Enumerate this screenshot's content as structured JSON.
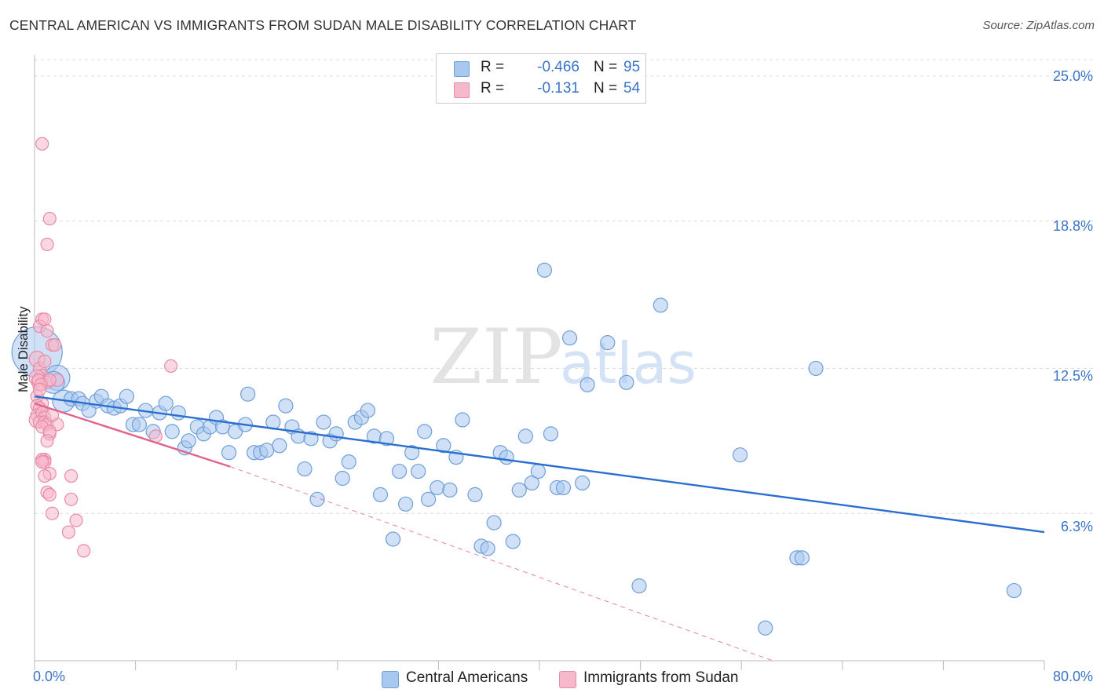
{
  "title": "CENTRAL AMERICAN VS IMMIGRANTS FROM SUDAN MALE DISABILITY CORRELATION CHART",
  "source": "Source: ZipAtlas.com",
  "watermark": {
    "zip": "ZIP",
    "atlas": "atlas"
  },
  "colors": {
    "blue_fill": "#a9c8f0",
    "blue_stroke": "#6f9fd8",
    "blue_line": "#2a6fcf",
    "pink_fill": "#f6b8cb",
    "pink_stroke": "#e88aa8",
    "pink_line": "#e0648f",
    "axis_label": "#3b74c6"
  },
  "legend": {
    "r_label": "R =",
    "n_label": "N =",
    "rows": [
      {
        "series": "Central Americans",
        "r": "-0.466",
        "n": "95",
        "color": "#a9c8f0"
      },
      {
        "series": "Immigrants from Sudan",
        "r": "-0.131",
        "n": "54",
        "color": "#f6b8cb"
      }
    ]
  },
  "chart_data": {
    "type": "scatter",
    "title": "CENTRAL AMERICAN VS IMMIGRANTS FROM SUDAN MALE DISABILITY CORRELATION CHART",
    "xlabel": "",
    "ylabel": "Male Disability",
    "xlim": [
      0,
      80
    ],
    "ylim": [
      0,
      25.9
    ],
    "x_tick_labels": [
      "0.0%",
      "80.0%"
    ],
    "y_ticks": [
      6.3,
      12.5,
      18.8,
      25.0
    ],
    "y_tick_labels": [
      "6.3%",
      "12.5%",
      "18.8%",
      "25.0%"
    ],
    "grid": "horizontal dashed",
    "legend_position": "top-center",
    "series": [
      {
        "name": "Central Americans",
        "trend": {
          "x": [
            0,
            80
          ],
          "y": [
            11.3,
            5.5
          ],
          "style": "solid"
        },
        "points": [
          {
            "x": 0.2,
            "y": 13.2,
            "size": 32
          },
          {
            "x": 1.8,
            "y": 12.1,
            "size": 16
          },
          {
            "x": 1.5,
            "y": 11.9,
            "size": 14
          },
          {
            "x": 2.3,
            "y": 11.1,
            "size": 14
          },
          {
            "x": 2.9,
            "y": 11.2,
            "size": 9
          },
          {
            "x": 3.5,
            "y": 11.2,
            "size": 9
          },
          {
            "x": 3.8,
            "y": 11.0,
            "size": 9
          },
          {
            "x": 4.3,
            "y": 10.7,
            "size": 9
          },
          {
            "x": 4.9,
            "y": 11.1,
            "size": 9
          },
          {
            "x": 5.3,
            "y": 11.3,
            "size": 9
          },
          {
            "x": 5.8,
            "y": 10.9,
            "size": 9
          },
          {
            "x": 6.3,
            "y": 10.8,
            "size": 9
          },
          {
            "x": 6.8,
            "y": 10.9,
            "size": 9
          },
          {
            "x": 7.3,
            "y": 11.3,
            "size": 9
          },
          {
            "x": 7.8,
            "y": 10.1,
            "size": 9
          },
          {
            "x": 8.3,
            "y": 10.1,
            "size": 9
          },
          {
            "x": 8.8,
            "y": 10.7,
            "size": 9
          },
          {
            "x": 9.4,
            "y": 9.8,
            "size": 9
          },
          {
            "x": 9.9,
            "y": 10.6,
            "size": 9
          },
          {
            "x": 10.4,
            "y": 11.0,
            "size": 9
          },
          {
            "x": 10.9,
            "y": 9.8,
            "size": 9
          },
          {
            "x": 11.4,
            "y": 10.6,
            "size": 9
          },
          {
            "x": 11.9,
            "y": 9.1,
            "size": 9
          },
          {
            "x": 12.2,
            "y": 9.4,
            "size": 9
          },
          {
            "x": 12.9,
            "y": 10.0,
            "size": 9
          },
          {
            "x": 13.4,
            "y": 9.7,
            "size": 9
          },
          {
            "x": 13.9,
            "y": 10.0,
            "size": 9
          },
          {
            "x": 14.4,
            "y": 10.4,
            "size": 9
          },
          {
            "x": 14.9,
            "y": 10.0,
            "size": 9
          },
          {
            "x": 15.4,
            "y": 8.9,
            "size": 9
          },
          {
            "x": 15.9,
            "y": 9.8,
            "size": 9
          },
          {
            "x": 16.7,
            "y": 10.1,
            "size": 9
          },
          {
            "x": 16.9,
            "y": 11.4,
            "size": 9
          },
          {
            "x": 17.4,
            "y": 8.9,
            "size": 9
          },
          {
            "x": 17.9,
            "y": 8.9,
            "size": 9
          },
          {
            "x": 18.4,
            "y": 9.0,
            "size": 9
          },
          {
            "x": 18.9,
            "y": 10.2,
            "size": 9
          },
          {
            "x": 19.4,
            "y": 9.2,
            "size": 9
          },
          {
            "x": 19.9,
            "y": 10.9,
            "size": 9
          },
          {
            "x": 20.4,
            "y": 10.0,
            "size": 9
          },
          {
            "x": 20.9,
            "y": 9.6,
            "size": 9
          },
          {
            "x": 21.4,
            "y": 8.2,
            "size": 9
          },
          {
            "x": 21.9,
            "y": 9.5,
            "size": 9
          },
          {
            "x": 22.4,
            "y": 6.9,
            "size": 9
          },
          {
            "x": 22.9,
            "y": 10.2,
            "size": 9
          },
          {
            "x": 23.4,
            "y": 9.4,
            "size": 9
          },
          {
            "x": 23.9,
            "y": 9.7,
            "size": 9
          },
          {
            "x": 24.4,
            "y": 7.8,
            "size": 9
          },
          {
            "x": 24.9,
            "y": 8.5,
            "size": 9
          },
          {
            "x": 25.4,
            "y": 10.2,
            "size": 9
          },
          {
            "x": 25.9,
            "y": 10.4,
            "size": 9
          },
          {
            "x": 26.4,
            "y": 10.7,
            "size": 9
          },
          {
            "x": 26.9,
            "y": 9.6,
            "size": 9
          },
          {
            "x": 27.4,
            "y": 7.1,
            "size": 9
          },
          {
            "x": 27.9,
            "y": 9.5,
            "size": 9
          },
          {
            "x": 28.4,
            "y": 5.2,
            "size": 9
          },
          {
            "x": 28.9,
            "y": 8.1,
            "size": 9
          },
          {
            "x": 29.4,
            "y": 6.7,
            "size": 9
          },
          {
            "x": 29.9,
            "y": 8.9,
            "size": 9
          },
          {
            "x": 30.4,
            "y": 8.1,
            "size": 9
          },
          {
            "x": 30.9,
            "y": 9.8,
            "size": 9
          },
          {
            "x": 31.2,
            "y": 6.9,
            "size": 9
          },
          {
            "x": 31.9,
            "y": 7.4,
            "size": 9
          },
          {
            "x": 32.4,
            "y": 9.2,
            "size": 9
          },
          {
            "x": 32.9,
            "y": 7.3,
            "size": 9
          },
          {
            "x": 33.4,
            "y": 8.7,
            "size": 9
          },
          {
            "x": 33.9,
            "y": 10.3,
            "size": 9
          },
          {
            "x": 34.9,
            "y": 7.1,
            "size": 9
          },
          {
            "x": 35.4,
            "y": 4.9,
            "size": 9
          },
          {
            "x": 35.9,
            "y": 4.8,
            "size": 9
          },
          {
            "x": 36.4,
            "y": 5.9,
            "size": 9
          },
          {
            "x": 36.9,
            "y": 8.9,
            "size": 9
          },
          {
            "x": 37.4,
            "y": 8.7,
            "size": 9
          },
          {
            "x": 37.9,
            "y": 5.1,
            "size": 9
          },
          {
            "x": 38.4,
            "y": 7.3,
            "size": 9
          },
          {
            "x": 38.9,
            "y": 9.6,
            "size": 9
          },
          {
            "x": 39.4,
            "y": 7.6,
            "size": 9
          },
          {
            "x": 39.9,
            "y": 8.1,
            "size": 9
          },
          {
            "x": 40.4,
            "y": 16.7,
            "size": 9
          },
          {
            "x": 40.9,
            "y": 9.7,
            "size": 9
          },
          {
            "x": 41.4,
            "y": 7.4,
            "size": 9
          },
          {
            "x": 41.9,
            "y": 7.4,
            "size": 9
          },
          {
            "x": 42.4,
            "y": 13.8,
            "size": 9
          },
          {
            "x": 43.4,
            "y": 7.6,
            "size": 9
          },
          {
            "x": 43.8,
            "y": 11.8,
            "size": 9
          },
          {
            "x": 45.4,
            "y": 13.6,
            "size": 9
          },
          {
            "x": 46.9,
            "y": 11.9,
            "size": 9
          },
          {
            "x": 47.9,
            "y": 3.2,
            "size": 9
          },
          {
            "x": 49.6,
            "y": 15.2,
            "size": 9
          },
          {
            "x": 55.9,
            "y": 8.8,
            "size": 9
          },
          {
            "x": 57.9,
            "y": 1.4,
            "size": 9
          },
          {
            "x": 60.4,
            "y": 4.4,
            "size": 9
          },
          {
            "x": 60.8,
            "y": 4.4,
            "size": 9
          },
          {
            "x": 61.9,
            "y": 12.5,
            "size": 9
          },
          {
            "x": 77.6,
            "y": 3.0,
            "size": 9
          }
        ]
      },
      {
        "name": "Immigrants from Sudan",
        "trend": {
          "x": [
            0,
            15.5
          ],
          "y": [
            11.0,
            8.3
          ],
          "style": "solid"
        },
        "trend_extension": {
          "x": [
            15.5,
            58.5
          ],
          "y": [
            8.3,
            0
          ],
          "style": "dashed"
        },
        "points": [
          {
            "x": 0.6,
            "y": 22.1,
            "size": 8
          },
          {
            "x": 1.2,
            "y": 18.9,
            "size": 8
          },
          {
            "x": 1.0,
            "y": 17.8,
            "size": 8
          },
          {
            "x": 0.6,
            "y": 14.6,
            "size": 8
          },
          {
            "x": 0.4,
            "y": 14.3,
            "size": 8
          },
          {
            "x": 0.8,
            "y": 14.6,
            "size": 8
          },
          {
            "x": 1.0,
            "y": 14.1,
            "size": 8
          },
          {
            "x": 1.4,
            "y": 13.5,
            "size": 8
          },
          {
            "x": 1.6,
            "y": 13.5,
            "size": 8
          },
          {
            "x": 0.2,
            "y": 12.9,
            "size": 10
          },
          {
            "x": 0.4,
            "y": 12.5,
            "size": 8
          },
          {
            "x": 0.8,
            "y": 12.8,
            "size": 8
          },
          {
            "x": 0.6,
            "y": 12.2,
            "size": 8
          },
          {
            "x": 0.2,
            "y": 12.1,
            "size": 10
          },
          {
            "x": 0.4,
            "y": 11.9,
            "size": 10
          },
          {
            "x": 1.0,
            "y": 11.9,
            "size": 8
          },
          {
            "x": 1.8,
            "y": 12.0,
            "size": 8
          },
          {
            "x": 1.2,
            "y": 12.0,
            "size": 8
          },
          {
            "x": 0.2,
            "y": 11.3,
            "size": 8
          },
          {
            "x": 0.6,
            "y": 11.0,
            "size": 8
          },
          {
            "x": 0.2,
            "y": 10.9,
            "size": 8
          },
          {
            "x": 0.4,
            "y": 10.8,
            "size": 8
          },
          {
            "x": 0.2,
            "y": 10.5,
            "size": 8
          },
          {
            "x": 0.2,
            "y": 10.3,
            "size": 10
          },
          {
            "x": 0.6,
            "y": 10.6,
            "size": 8
          },
          {
            "x": 0.8,
            "y": 10.4,
            "size": 8
          },
          {
            "x": 0.4,
            "y": 10.2,
            "size": 8
          },
          {
            "x": 0.8,
            "y": 10.2,
            "size": 8
          },
          {
            "x": 1.0,
            "y": 10.1,
            "size": 8
          },
          {
            "x": 0.6,
            "y": 10.0,
            "size": 8
          },
          {
            "x": 1.8,
            "y": 10.1,
            "size": 8
          },
          {
            "x": 1.4,
            "y": 10.5,
            "size": 8
          },
          {
            "x": 1.2,
            "y": 9.7,
            "size": 8
          },
          {
            "x": 1.2,
            "y": 9.8,
            "size": 8
          },
          {
            "x": 1.0,
            "y": 9.4,
            "size": 8
          },
          {
            "x": 0.8,
            "y": 8.6,
            "size": 8
          },
          {
            "x": 0.6,
            "y": 8.6,
            "size": 8
          },
          {
            "x": 0.8,
            "y": 8.5,
            "size": 8
          },
          {
            "x": 0.6,
            "y": 8.5,
            "size": 8
          },
          {
            "x": 1.2,
            "y": 8.0,
            "size": 8
          },
          {
            "x": 0.8,
            "y": 7.9,
            "size": 8
          },
          {
            "x": 1.0,
            "y": 7.2,
            "size": 8
          },
          {
            "x": 1.2,
            "y": 7.1,
            "size": 8
          },
          {
            "x": 1.4,
            "y": 6.3,
            "size": 8
          },
          {
            "x": 2.9,
            "y": 7.9,
            "size": 8
          },
          {
            "x": 2.9,
            "y": 6.9,
            "size": 8
          },
          {
            "x": 3.3,
            "y": 6.0,
            "size": 8
          },
          {
            "x": 2.7,
            "y": 5.5,
            "size": 8
          },
          {
            "x": 3.9,
            "y": 4.7,
            "size": 8
          },
          {
            "x": 9.6,
            "y": 9.6,
            "size": 8
          },
          {
            "x": 10.8,
            "y": 12.6,
            "size": 8
          },
          {
            "x": 0.3,
            "y": 12.0,
            "size": 8
          },
          {
            "x": 0.5,
            "y": 11.8,
            "size": 8
          },
          {
            "x": 0.4,
            "y": 11.6,
            "size": 8
          }
        ]
      }
    ]
  }
}
